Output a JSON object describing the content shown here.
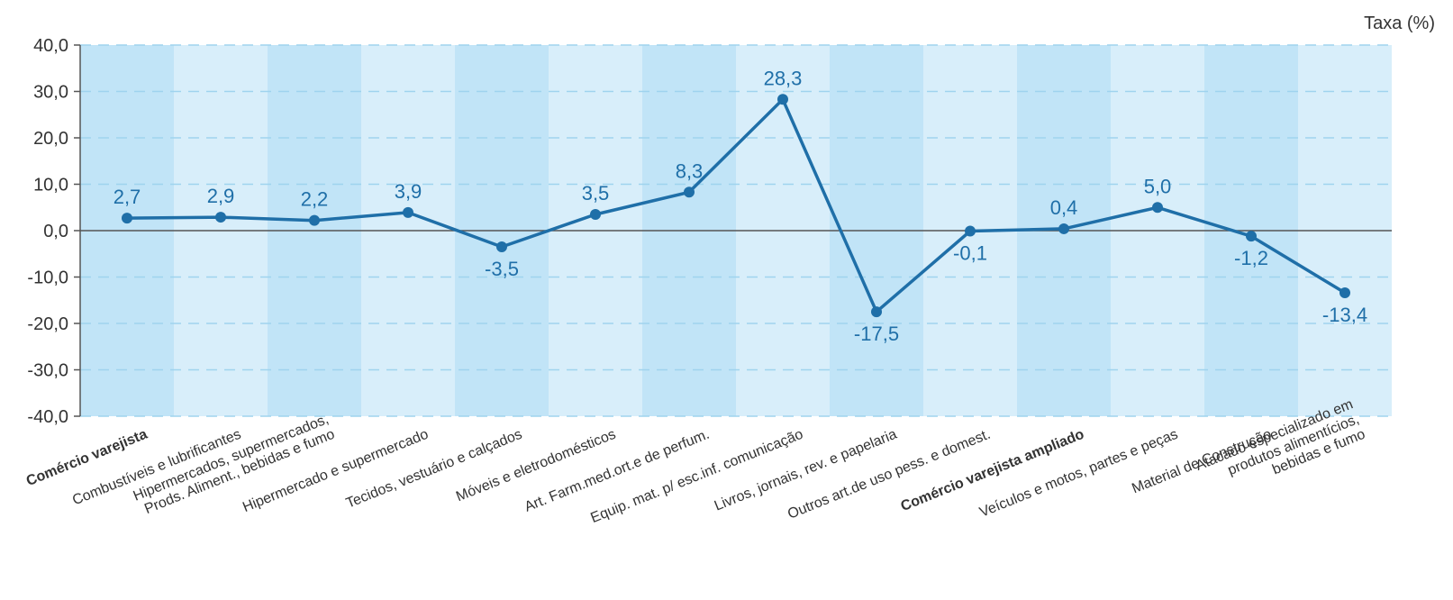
{
  "chart_data": {
    "type": "line",
    "title": "",
    "ylabel": "",
    "unit_label": "Taxa (%)",
    "ylim": [
      -40,
      40
    ],
    "yticks": [
      40,
      30,
      20,
      10,
      0,
      -10,
      -20,
      -30,
      -40
    ],
    "ytick_labels": [
      "40,0",
      "30,0",
      "20,0",
      "10,0",
      "0,0",
      "-10,0",
      "-20,0",
      "-30,0",
      "-40,0"
    ],
    "grid": "horizontal dashed",
    "colors": {
      "line": "#1f6fa8",
      "point": "#1f6fa8",
      "data_label": "#1f6fa8",
      "band_dark": "#c1e4f7",
      "band_light": "#d8eefa",
      "grid": "#9fd3ee",
      "zero_line": "#555555",
      "axis": "#555555"
    },
    "categories": [
      {
        "lines": [
          "Comércio varejista"
        ],
        "bold": true
      },
      {
        "lines": [
          "Combustíveis e lubrificantes"
        ],
        "bold": false
      },
      {
        "lines": [
          "Hipermercados, supermercados,",
          "Prods. Aliment., bebidas e fumo"
        ],
        "bold": false
      },
      {
        "lines": [
          "Hipermercado e supermercado"
        ],
        "bold": false
      },
      {
        "lines": [
          "Tecidos, vestuário e calçados"
        ],
        "bold": false
      },
      {
        "lines": [
          "Móveis e eletrodomésticos"
        ],
        "bold": false
      },
      {
        "lines": [
          "Art. Farm.med.ort.e de perfum."
        ],
        "bold": false
      },
      {
        "lines": [
          "Equip. mat. p/ esc.inf. comunicação"
        ],
        "bold": false
      },
      {
        "lines": [
          "Livros, jornais, rev. e papelaria"
        ],
        "bold": false
      },
      {
        "lines": [
          "Outros art.de uso pess. e domest."
        ],
        "bold": false
      },
      {
        "lines": [
          "Comércio varejista ampliado"
        ],
        "bold": true
      },
      {
        "lines": [
          "Veículos e motos, partes e peças"
        ],
        "bold": false
      },
      {
        "lines": [
          "Material de Construção"
        ],
        "bold": false
      },
      {
        "lines": [
          "Atacado especializado em",
          "produtos alimentícios,",
          "bebidas e fumo"
        ],
        "bold": false
      }
    ],
    "series": [
      {
        "values": [
          2.7,
          2.9,
          2.2,
          3.9,
          -3.5,
          3.5,
          8.3,
          28.3,
          -17.5,
          -0.1,
          0.4,
          5.0,
          -1.2,
          -13.4
        ],
        "labels": [
          "2,7",
          "2,9",
          "2,2",
          "3,9",
          "-3,5",
          "3,5",
          "8,3",
          "28,3",
          "-17,5",
          "-0,1",
          "0,4",
          "5,0",
          "-1,2",
          "-13,4"
        ]
      }
    ]
  }
}
